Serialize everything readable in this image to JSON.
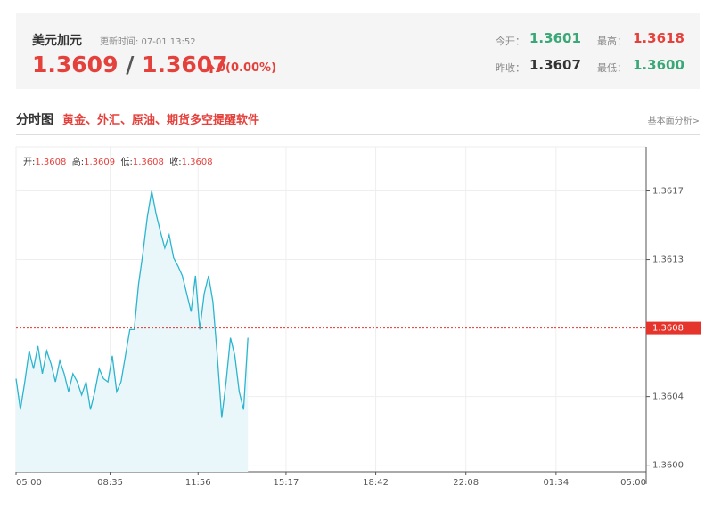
{
  "header": {
    "title": "美元加元",
    "update_time": "更新时间: 07-01 13:52",
    "bid": "1.3609",
    "separator": "/",
    "ask": "1.3607",
    "change": "0(0.00%)",
    "stats": [
      {
        "label": "今开：",
        "value": "1.3601"
      },
      {
        "label": "最高：",
        "value": "1.3618"
      },
      {
        "label": "昨收：",
        "value": "1.3607"
      },
      {
        "label": "最低：",
        "value": "1.3600"
      }
    ]
  },
  "section": {
    "title": "分时图",
    "promo": "黄金、外汇、原油、期货多空提醒软件",
    "link": "基本面分析>"
  },
  "chart_data": {
    "type": "line",
    "ohlc": [
      {
        "label": "开:",
        "value": "1.3608"
      },
      {
        "label": "高:",
        "value": "1.3609"
      },
      {
        "label": "低:",
        "value": "1.3608"
      },
      {
        "label": "收:",
        "value": "1.3608"
      }
    ],
    "x": [
      "05:00",
      "05:10",
      "05:20",
      "05:30",
      "05:40",
      "05:50",
      "06:00",
      "06:10",
      "06:20",
      "06:30",
      "06:40",
      "06:50",
      "07:00",
      "07:10",
      "07:20",
      "07:30",
      "07:40",
      "07:50",
      "08:00",
      "08:10",
      "08:20",
      "08:30",
      "08:40",
      "08:50",
      "09:00",
      "09:10",
      "09:20",
      "09:30",
      "09:40",
      "09:50",
      "10:00",
      "10:10",
      "10:20",
      "10:30",
      "10:40",
      "10:50",
      "11:00",
      "11:10",
      "11:20",
      "11:30",
      "11:40",
      "11:50",
      "12:00",
      "12:10",
      "12:20",
      "12:30",
      "12:40",
      "12:50",
      "13:00",
      "13:10",
      "13:20",
      "13:30",
      "13:40",
      "13:50"
    ],
    "series": [
      {
        "color": "#2bb5cf",
        "fill": "#e9f7fb",
        "values": [
          1.36053,
          1.36034,
          1.36051,
          1.3607,
          1.36059,
          1.36073,
          1.36056,
          1.3607,
          1.36062,
          1.36051,
          1.36064,
          1.36056,
          1.36045,
          1.36056,
          1.36051,
          1.36043,
          1.36051,
          1.36034,
          1.36045,
          1.36059,
          1.36053,
          1.36051,
          1.36067,
          1.36045,
          1.36051,
          1.36067,
          1.36083,
          1.36083,
          1.36111,
          1.3613,
          1.36152,
          1.36168,
          1.36154,
          1.36143,
          1.36133,
          1.36141,
          1.36127,
          1.36122,
          1.36116,
          1.36105,
          1.36094,
          1.36116,
          1.36083,
          1.36105,
          1.36116,
          1.361,
          1.36067,
          1.36029,
          1.36051,
          1.36078,
          1.36067,
          1.36045,
          1.36034,
          1.36078
        ]
      }
    ],
    "current_price": {
      "value": 1.36084,
      "label": "1.3608",
      "color": "#e5342c"
    },
    "xlim": [
      "05:00",
      "05:00"
    ],
    "xticks": [
      "05:00",
      "08:35",
      "11:56",
      "15:17",
      "18:42",
      "22:08",
      "01:34",
      "05:00"
    ],
    "ylim": [
      1.35996,
      1.36195
    ],
    "yticks": [
      {
        "value": 1.36,
        "label": "1.3600"
      },
      {
        "value": 1.36042,
        "label": "1.3604"
      },
      {
        "value": 1.36126,
        "label": "1.3613"
      },
      {
        "value": 1.36168,
        "label": "1.3617"
      }
    ],
    "grid": true
  }
}
